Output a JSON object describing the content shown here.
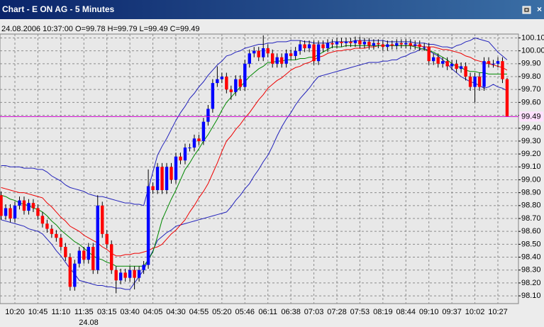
{
  "chart_data": {
    "type": "candlestick",
    "title": "Chart - E ON AG - 5 Minutes",
    "info": "24.08.2006 10:37:00 O=99.78 H=99.79 L=99.49 C=99.49",
    "date_label": "24.08",
    "last_price": 99.49,
    "up_color": "#0000ff",
    "down_color": "#ff0000",
    "wick_color": "#000000",
    "last_price_color": "#cc00cc",
    "grid": true,
    "ylim": [
      98.04,
      100.13
    ],
    "yticks": [
      {
        "value": 100.1,
        "label": "100.10"
      },
      {
        "value": 100.0,
        "label": "100.00"
      },
      {
        "value": 99.9,
        "label": "99.90"
      },
      {
        "value": 99.8,
        "label": "99.80"
      },
      {
        "value": 99.7,
        "label": "99.70"
      },
      {
        "value": 99.6,
        "label": "99.60"
      },
      {
        "value": 99.5,
        "label": "99.50"
      },
      {
        "value": 99.4,
        "label": "99.40"
      },
      {
        "value": 99.3,
        "label": "99.30"
      },
      {
        "value": 99.2,
        "label": "99.20"
      },
      {
        "value": 99.1,
        "label": "99.10"
      },
      {
        "value": 99.0,
        "label": "99.00"
      },
      {
        "value": 98.9,
        "label": "98.90"
      },
      {
        "value": 98.8,
        "label": "98.80"
      },
      {
        "value": 98.7,
        "label": "98.70"
      },
      {
        "value": 98.6,
        "label": "98.60"
      },
      {
        "value": 98.5,
        "label": "98.50"
      },
      {
        "value": 98.4,
        "label": "98.40"
      },
      {
        "value": 98.3,
        "label": "98.30"
      },
      {
        "value": 98.2,
        "label": "98.20"
      },
      {
        "value": 98.1,
        "label": "98.10"
      }
    ],
    "categories": [
      null,
      null,
      null,
      "10:20",
      null,
      null,
      null,
      null,
      "10:45",
      null,
      null,
      null,
      null,
      "11:10",
      null,
      null,
      null,
      null,
      "11:35",
      null,
      null,
      null,
      null,
      "03:15",
      null,
      null,
      null,
      null,
      "03:40",
      null,
      null,
      null,
      null,
      "04:05",
      null,
      null,
      null,
      null,
      "04:30",
      null,
      null,
      null,
      null,
      "04:55",
      null,
      null,
      null,
      null,
      "05:20",
      null,
      null,
      null,
      null,
      "05:46",
      null,
      null,
      null,
      null,
      "06:11",
      null,
      null,
      null,
      null,
      "06:38",
      null,
      null,
      null,
      null,
      "07:03",
      null,
      null,
      null,
      null,
      "07:28",
      null,
      null,
      null,
      null,
      "07:53",
      null,
      null,
      null,
      null,
      "08:19",
      null,
      null,
      null,
      null,
      "08:44",
      null,
      null,
      null,
      null,
      "09:10",
      null,
      null,
      null,
      null,
      "09:37",
      null,
      null,
      null,
      null,
      "10:02",
      null,
      null,
      null,
      null,
      "10:27",
      null,
      null
    ],
    "open": [
      98.88,
      98.72,
      98.78,
      98.7,
      98.8,
      98.84,
      98.76,
      98.82,
      98.78,
      98.72,
      98.66,
      98.62,
      98.58,
      98.55,
      98.48,
      98.4,
      98.17,
      98.35,
      98.45,
      98.38,
      98.48,
      98.3,
      98.8,
      98.58,
      98.5,
      98.3,
      98.22,
      98.28,
      98.24,
      98.3,
      98.24,
      98.3,
      98.34,
      98.95,
      98.92,
      99.1,
      98.92,
      99.1,
      99.0,
      99.18,
      99.15,
      99.25,
      99.25,
      99.32,
      99.3,
      99.45,
      99.55,
      99.75,
      99.78,
      99.8,
      99.7,
      99.68,
      99.78,
      99.72,
      99.9,
      99.98,
      100.0,
      99.95,
      100.02,
      99.98,
      99.9,
      99.95,
      99.9,
      99.98,
      99.96,
      100.0,
      100.05,
      100.02,
      100.05,
      99.92,
      100.05,
      100.02,
      100.06,
      100.05,
      100.07,
      100.06,
      100.07,
      100.06,
      100.08,
      100.05,
      100.07,
      100.04,
      100.06,
      100.05,
      100.03,
      100.05,
      100.04,
      100.06,
      100.05,
      100.06,
      100.04,
      100.05,
      100.03,
      100.03,
      99.92,
      99.95,
      99.9,
      99.92,
      99.88,
      99.9,
      99.86,
      99.88,
      99.8,
      99.72,
      99.8,
      99.72,
      99.92,
      99.9,
      99.9,
      99.92,
      99.78
    ],
    "high": [
      98.91,
      98.81,
      98.81,
      98.83,
      98.87,
      98.87,
      98.85,
      98.85,
      98.81,
      98.75,
      98.69,
      98.65,
      98.61,
      98.58,
      98.51,
      98.43,
      98.38,
      98.48,
      98.48,
      98.51,
      98.51,
      98.88,
      98.83,
      98.61,
      98.53,
      98.33,
      98.31,
      98.31,
      98.33,
      98.33,
      98.33,
      98.37,
      99.08,
      98.98,
      99.13,
      99.13,
      99.13,
      99.13,
      99.21,
      99.21,
      99.28,
      99.28,
      99.35,
      99.35,
      99.48,
      99.58,
      99.78,
      99.88,
      99.83,
      99.83,
      99.73,
      99.81,
      99.81,
      99.93,
      100.01,
      100.03,
      100.03,
      100.12,
      100.05,
      100.01,
      99.98,
      99.98,
      100.01,
      100.01,
      100.03,
      100.08,
      100.08,
      100.08,
      100.08,
      100.08,
      100.08,
      100.09,
      100.09,
      100.1,
      100.1,
      100.1,
      100.1,
      100.11,
      100.11,
      100.1,
      100.1,
      100.09,
      100.09,
      100.08,
      100.08,
      100.08,
      100.09,
      100.09,
      100.09,
      100.09,
      100.08,
      100.08,
      100.06,
      100.06,
      99.98,
      99.98,
      99.95,
      99.95,
      99.93,
      99.93,
      99.91,
      99.91,
      99.83,
      99.83,
      99.83,
      99.95,
      99.95,
      99.93,
      99.95,
      99.95,
      99.79
    ],
    "low": [
      98.69,
      98.69,
      98.67,
      98.67,
      98.77,
      98.73,
      98.73,
      98.75,
      98.69,
      98.63,
      98.59,
      98.55,
      98.52,
      98.45,
      98.37,
      98.14,
      98.14,
      98.32,
      98.35,
      98.35,
      98.27,
      98.27,
      98.55,
      98.47,
      98.27,
      98.12,
      98.19,
      98.21,
      98.21,
      98.15,
      98.21,
      98.27,
      98.31,
      98.89,
      98.89,
      98.89,
      98.89,
      98.97,
      98.97,
      99.12,
      99.12,
      99.22,
      99.22,
      99.27,
      99.27,
      99.42,
      99.52,
      99.72,
      99.75,
      99.67,
      99.62,
      99.65,
      99.69,
      99.69,
      99.87,
      99.95,
      99.92,
      99.92,
      99.95,
      99.87,
      99.87,
      99.87,
      99.87,
      99.93,
      99.93,
      99.97,
      99.99,
      99.99,
      99.89,
      99.89,
      99.99,
      99.99,
      100.02,
      100.02,
      100.03,
      100.03,
      100.03,
      100.03,
      100.02,
      100.02,
      100.01,
      100.01,
      100.02,
      100.0,
      100.0,
      100.01,
      100.01,
      100.02,
      100.02,
      100.01,
      100.01,
      100.0,
      100.0,
      99.89,
      99.89,
      99.87,
      99.87,
      99.85,
      99.85,
      99.83,
      99.83,
      99.77,
      99.69,
      99.6,
      99.69,
      99.69,
      99.87,
      99.87,
      99.87,
      99.75,
      99.49
    ],
    "close": [
      98.72,
      98.78,
      98.7,
      98.8,
      98.84,
      98.76,
      98.82,
      98.78,
      98.72,
      98.66,
      98.62,
      98.58,
      98.55,
      98.48,
      98.4,
      98.17,
      98.35,
      98.45,
      98.38,
      98.48,
      98.3,
      98.8,
      98.58,
      98.5,
      98.3,
      98.22,
      98.28,
      98.24,
      98.3,
      98.24,
      98.3,
      98.34,
      98.95,
      98.92,
      99.1,
      98.92,
      99.1,
      99.0,
      99.18,
      99.15,
      99.25,
      99.25,
      99.32,
      99.3,
      99.45,
      99.55,
      99.75,
      99.78,
      99.8,
      99.7,
      99.68,
      99.78,
      99.72,
      99.9,
      99.98,
      100.0,
      99.95,
      100.02,
      99.98,
      99.9,
      99.95,
      99.9,
      99.98,
      99.96,
      100.0,
      100.05,
      100.02,
      100.05,
      99.92,
      100.05,
      100.02,
      100.06,
      100.05,
      100.07,
      100.06,
      100.07,
      100.06,
      100.08,
      100.05,
      100.07,
      100.04,
      100.06,
      100.05,
      100.03,
      100.05,
      100.04,
      100.06,
      100.05,
      100.06,
      100.04,
      100.05,
      100.03,
      100.03,
      99.92,
      99.95,
      99.9,
      99.92,
      99.88,
      99.9,
      99.86,
      99.88,
      99.8,
      99.72,
      99.8,
      99.72,
      99.92,
      99.9,
      99.9,
      99.92,
      99.78,
      99.49
    ],
    "series": [
      {
        "color": "#2222bb",
        "values": [
          99.11,
          99.11,
          99.1,
          99.1,
          99.1,
          99.09,
          99.09,
          99.09,
          99.08,
          99.08,
          99.06,
          99.03,
          99.01,
          98.99,
          98.96,
          98.94,
          98.93,
          98.92,
          98.91,
          98.89,
          98.88,
          98.87,
          98.87,
          98.86,
          98.85,
          98.84,
          98.83,
          98.82,
          98.82,
          98.81,
          98.81,
          98.8,
          98.93,
          99.06,
          99.19,
          99.26,
          99.32,
          99.39,
          99.46,
          99.52,
          99.57,
          99.63,
          99.67,
          99.72,
          99.76,
          99.81,
          99.85,
          99.89,
          99.92,
          99.96,
          99.97,
          99.99,
          100.0,
          100.02,
          100.03,
          100.04,
          100.05,
          100.05,
          100.06,
          100.06,
          100.07,
          100.07,
          100.07,
          100.08,
          100.08,
          100.08,
          100.07,
          100.07,
          100.06,
          100.06,
          100.06,
          100.06,
          100.07,
          100.07,
          100.07,
          100.07,
          100.07,
          100.08,
          100.08,
          100.08,
          100.08,
          100.08,
          100.08,
          100.08,
          100.07,
          100.07,
          100.07,
          100.07,
          100.07,
          100.07,
          100.06,
          100.06,
          100.06,
          100.05,
          100.05,
          100.04,
          100.03,
          100.03,
          100.02,
          100.04,
          100.05,
          100.07,
          100.08,
          100.1,
          100.09,
          100.08,
          100.07,
          100.03,
          99.99,
          99.96,
          99.93
        ]
      },
      {
        "color": "#2222bb",
        "values": [
          98.69,
          98.68,
          98.67,
          98.66,
          98.65,
          98.64,
          98.62,
          98.61,
          98.6,
          98.58,
          98.54,
          98.5,
          98.45,
          98.41,
          98.36,
          98.31,
          98.27,
          98.22,
          98.21,
          98.2,
          98.19,
          98.18,
          98.18,
          98.17,
          98.17,
          98.16,
          98.16,
          98.15,
          98.15,
          98.2,
          98.25,
          98.3,
          98.38,
          98.45,
          98.53,
          98.56,
          98.59,
          98.61,
          98.64,
          98.65,
          98.66,
          98.67,
          98.68,
          98.69,
          98.7,
          98.71,
          98.72,
          98.73,
          98.74,
          98.75,
          98.79,
          98.84,
          98.88,
          98.93,
          98.97,
          99.03,
          99.08,
          99.14,
          99.19,
          99.26,
          99.34,
          99.41,
          99.47,
          99.52,
          99.58,
          99.63,
          99.67,
          99.71,
          99.76,
          99.8,
          99.81,
          99.82,
          99.83,
          99.84,
          99.85,
          99.86,
          99.87,
          99.88,
          99.89,
          99.9,
          99.91,
          99.91,
          99.91,
          99.92,
          99.92,
          99.93,
          99.93,
          99.95,
          99.96,
          99.98,
          99.99,
          100.01,
          100.02,
          100.0,
          99.98,
          99.96,
          99.93,
          99.9,
          99.86,
          99.83,
          99.8,
          99.78,
          99.76,
          99.75,
          99.73,
          99.71,
          99.72,
          99.74,
          99.72,
          99.71,
          99.69
        ]
      },
      {
        "color": "#ee0000",
        "values": [
          98.94,
          98.93,
          98.92,
          98.91,
          98.9,
          98.9,
          98.89,
          98.88,
          98.87,
          98.86,
          98.82,
          98.79,
          98.75,
          98.71,
          98.68,
          98.64,
          98.62,
          98.6,
          98.57,
          98.55,
          98.53,
          98.51,
          98.48,
          98.46,
          98.43,
          98.41,
          98.41,
          98.42,
          98.42,
          98.43,
          98.43,
          98.44,
          98.45,
          98.47,
          98.48,
          98.5,
          98.54,
          98.58,
          98.61,
          98.65,
          98.69,
          98.75,
          98.8,
          98.86,
          98.91,
          98.97,
          99.05,
          99.13,
          99.22,
          99.3,
          99.34,
          99.39,
          99.43,
          99.48,
          99.52,
          99.57,
          99.62,
          99.66,
          99.71,
          99.74,
          99.77,
          99.79,
          99.82,
          99.85,
          99.87,
          99.88,
          99.9,
          99.91,
          99.93,
          99.95,
          99.96,
          99.98,
          99.99,
          100.0,
          100.0,
          100.01,
          100.01,
          100.02,
          100.02,
          100.02,
          100.03,
          100.03,
          100.04,
          100.04,
          100.04,
          100.04,
          100.04,
          100.04,
          100.04,
          100.04,
          100.04,
          100.04,
          100.03,
          100.03,
          100.03,
          100.02,
          100.01,
          100.01,
          100.0,
          99.99,
          99.98,
          99.96,
          99.95,
          99.93,
          99.92,
          99.91,
          99.9,
          99.89,
          99.88,
          99.87,
          99.85
        ]
      },
      {
        "color": "#008800",
        "values": [
          98.88,
          98.87,
          98.85,
          98.84,
          98.82,
          98.81,
          98.8,
          98.78,
          98.77,
          98.75,
          98.72,
          98.68,
          98.65,
          98.61,
          98.58,
          98.55,
          98.52,
          98.5,
          98.47,
          98.44,
          98.41,
          98.39,
          98.38,
          98.36,
          98.35,
          98.33,
          98.33,
          98.33,
          98.33,
          98.33,
          98.33,
          98.33,
          98.38,
          98.44,
          98.56,
          98.69,
          98.77,
          98.85,
          98.92,
          99.0,
          99.08,
          99.13,
          99.19,
          99.24,
          99.3,
          99.35,
          99.41,
          99.47,
          99.54,
          99.6,
          99.64,
          99.68,
          99.72,
          99.76,
          99.8,
          99.83,
          99.86,
          99.88,
          99.91,
          99.91,
          99.92,
          99.92,
          99.93,
          99.93,
          99.93,
          99.94,
          99.94,
          99.95,
          99.95,
          99.97,
          99.99,
          100.01,
          100.03,
          100.03,
          100.03,
          100.04,
          100.04,
          100.04,
          100.04,
          100.04,
          100.04,
          100.04,
          100.04,
          100.04,
          100.04,
          100.04,
          100.04,
          100.04,
          100.04,
          100.04,
          100.03,
          100.02,
          100.01,
          100.0,
          99.99,
          99.97,
          99.95,
          99.93,
          99.9,
          99.88,
          99.87,
          99.85,
          99.84,
          99.84,
          99.83,
          99.83,
          99.82,
          99.82,
          99.82,
          99.82,
          99.82
        ]
      }
    ]
  }
}
